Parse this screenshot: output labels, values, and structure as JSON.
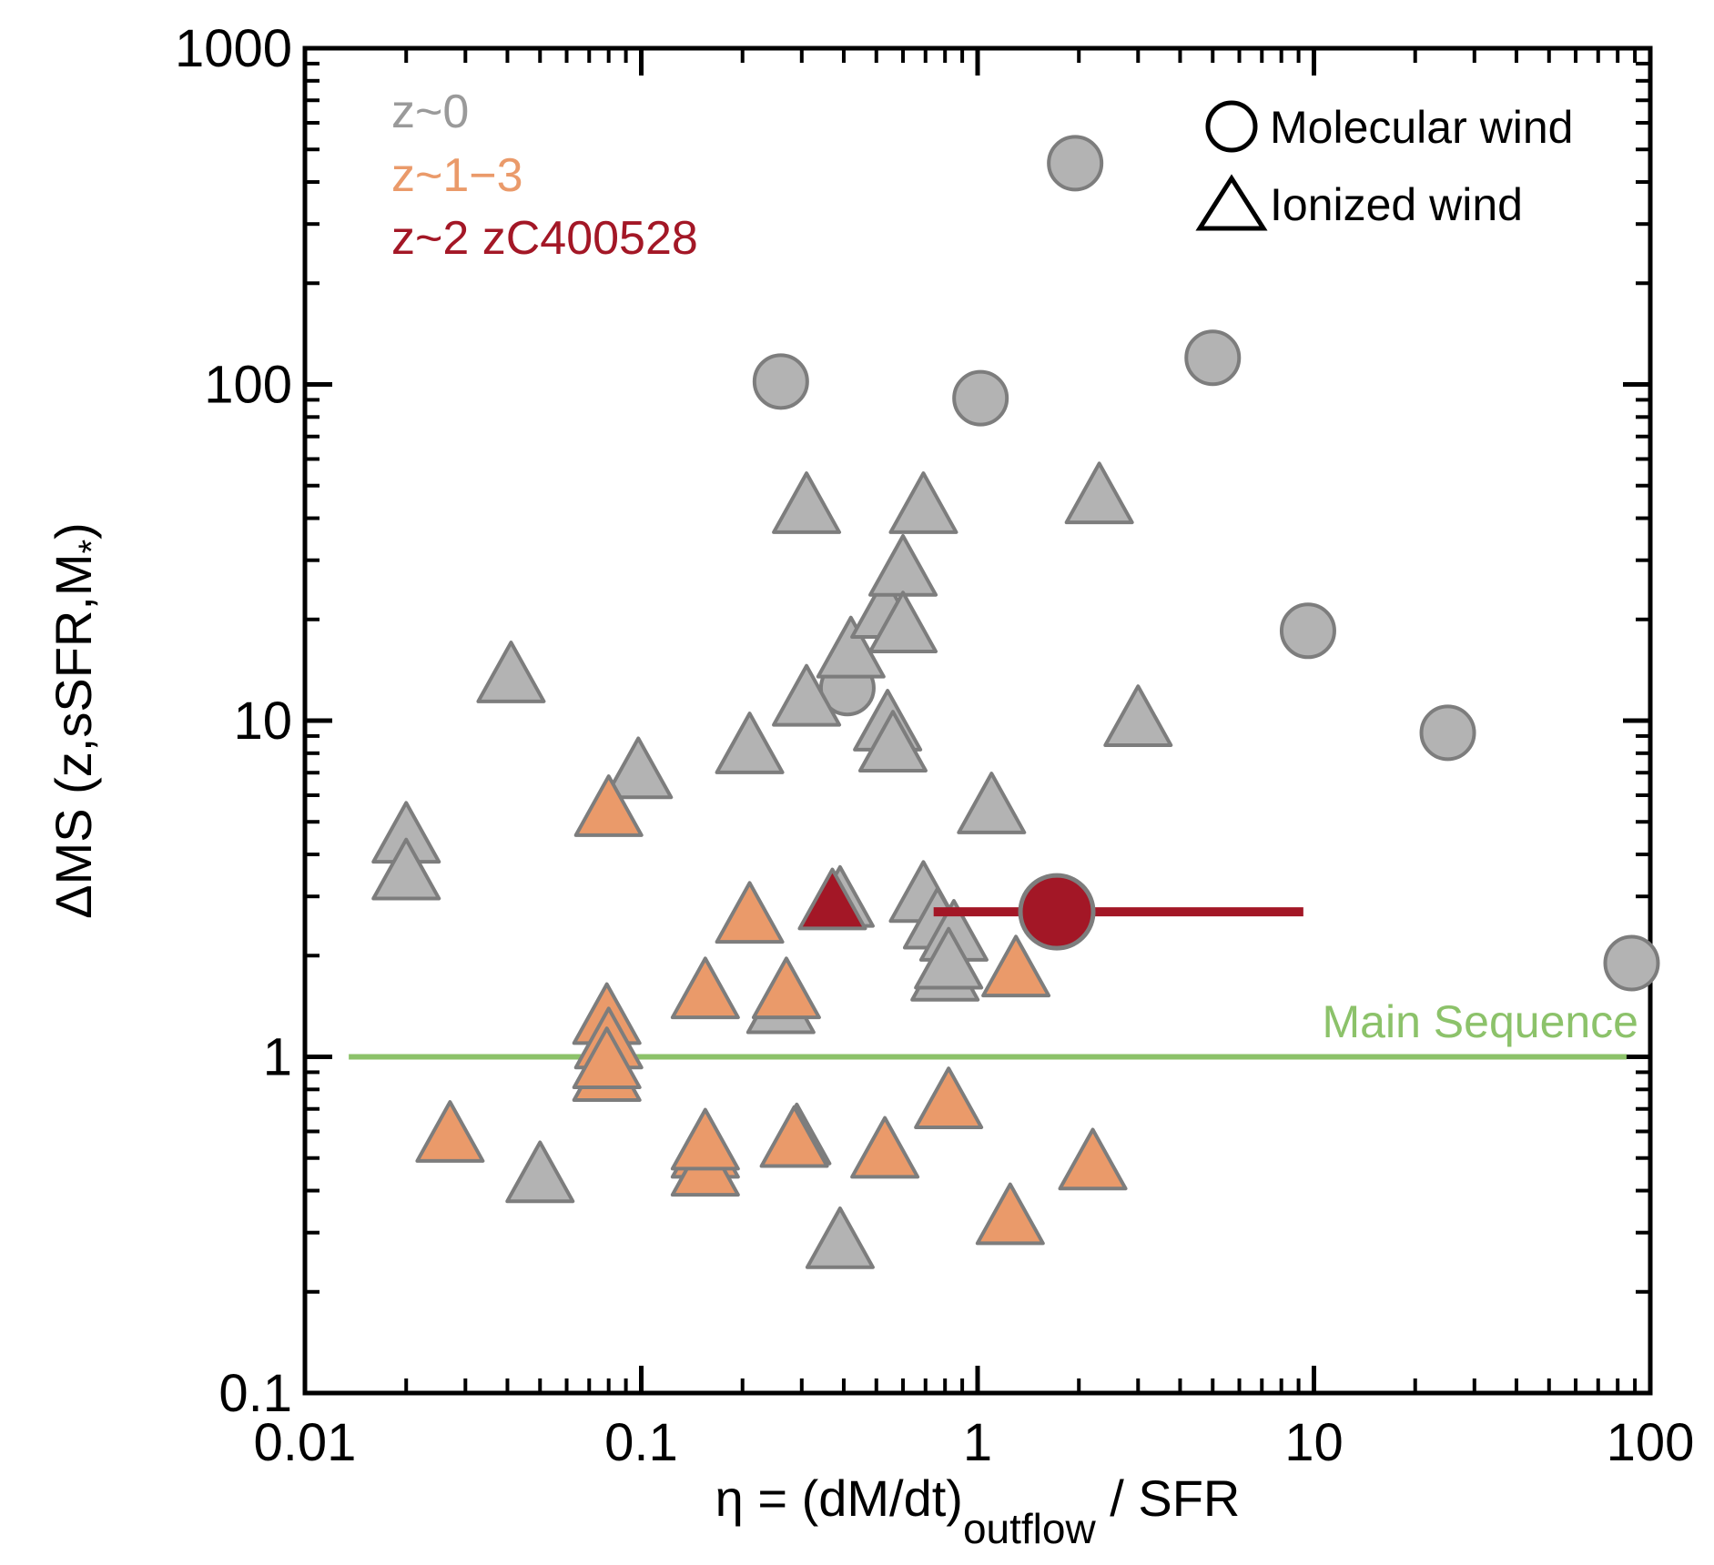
{
  "chart_data": {
    "type": "scatter",
    "x_scale": "log",
    "y_scale": "log",
    "xlim": [
      0.01,
      100
    ],
    "ylim": [
      0.1,
      1000
    ],
    "x_ticks": [
      {
        "value": 0.01,
        "label": "0.01"
      },
      {
        "value": 0.1,
        "label": "0.1"
      },
      {
        "value": 1,
        "label": "1"
      },
      {
        "value": 10,
        "label": "10"
      },
      {
        "value": 100,
        "label": "100"
      }
    ],
    "y_ticks": [
      {
        "value": 0.1,
        "label": "0.1"
      },
      {
        "value": 1,
        "label": "1"
      },
      {
        "value": 10,
        "label": "10"
      },
      {
        "value": 100,
        "label": "100"
      },
      {
        "value": 1000,
        "label": "1000"
      }
    ],
    "xlabel": {
      "main": "η = (dM/dt)",
      "sub": "outflow",
      "tail": " / SFR"
    },
    "ylabel": {
      "main": "ΔMS (z,sSFR,M",
      "sub": "*",
      "tail": ")"
    },
    "colors": {
      "z0": "#b3b3b3",
      "z13": "#ea9a6a",
      "zc": "#a31726",
      "stroke": "#7d7d7d",
      "ms": "#8cc26a"
    },
    "legend": [
      {
        "label": "z~0",
        "color": "#9a9a9a"
      },
      {
        "label": "z~1−3",
        "color": "#ea9a6a"
      },
      {
        "label": "z~2 zC400528",
        "color": "#a31726"
      }
    ],
    "marker_legend": [
      {
        "shape": "circle",
        "label": "Molecular wind"
      },
      {
        "shape": "triangle",
        "label": "Ionized wind"
      }
    ],
    "main_sequence": {
      "label": "Main Sequence",
      "y": 1,
      "x_start": 0.0135,
      "x_end": 85
    },
    "series": [
      {
        "name": "z~0 molecular",
        "marker": "circle",
        "color_key": "z0",
        "points": [
          {
            "x": 0.26,
            "y": 102
          },
          {
            "x": 1.02,
            "y": 91
          },
          {
            "x": 1.95,
            "y": 455
          },
          {
            "x": 5.0,
            "y": 120
          },
          {
            "x": 9.6,
            "y": 18.5
          },
          {
            "x": 25,
            "y": 9.2
          },
          {
            "x": 88,
            "y": 1.9
          },
          {
            "x": 0.41,
            "y": 12.5
          }
        ]
      },
      {
        "name": "z~0 ionized",
        "marker": "triangle",
        "color_key": "z0",
        "points": [
          {
            "x": 0.02,
            "y": 4.5
          },
          {
            "x": 0.02,
            "y": 3.5
          },
          {
            "x": 0.041,
            "y": 13.5
          },
          {
            "x": 0.05,
            "y": 0.44
          },
          {
            "x": 0.098,
            "y": 7.0
          },
          {
            "x": 0.21,
            "y": 8.3
          },
          {
            "x": 0.31,
            "y": 43
          },
          {
            "x": 0.31,
            "y": 11.5
          },
          {
            "x": 0.42,
            "y": 16
          },
          {
            "x": 0.39,
            "y": 2.9
          },
          {
            "x": 0.53,
            "y": 21
          },
          {
            "x": 0.6,
            "y": 28
          },
          {
            "x": 0.6,
            "y": 19
          },
          {
            "x": 0.69,
            "y": 43
          },
          {
            "x": 0.54,
            "y": 9.7
          },
          {
            "x": 0.56,
            "y": 8.4
          },
          {
            "x": 0.69,
            "y": 3.0
          },
          {
            "x": 0.76,
            "y": 2.5
          },
          {
            "x": 0.85,
            "y": 2.3
          },
          {
            "x": 0.8,
            "y": 1.75
          },
          {
            "x": 0.82,
            "y": 1.9
          },
          {
            "x": 1.1,
            "y": 5.5
          },
          {
            "x": 2.3,
            "y": 46
          },
          {
            "x": 3.0,
            "y": 10
          },
          {
            "x": 0.26,
            "y": 1.4
          },
          {
            "x": 0.29,
            "y": 0.57
          },
          {
            "x": 0.39,
            "y": 0.28
          }
        ]
      },
      {
        "name": "z~1-3 ionized",
        "marker": "triangle",
        "color_key": "z13",
        "points": [
          {
            "x": 0.027,
            "y": 0.58
          },
          {
            "x": 0.08,
            "y": 5.4
          },
          {
            "x": 0.079,
            "y": 1.3
          },
          {
            "x": 0.08,
            "y": 1.1
          },
          {
            "x": 0.079,
            "y": 0.88
          },
          {
            "x": 0.079,
            "y": 0.96
          },
          {
            "x": 0.155,
            "y": 1.55
          },
          {
            "x": 0.155,
            "y": 0.52
          },
          {
            "x": 0.155,
            "y": 0.46
          },
          {
            "x": 0.155,
            "y": 0.55
          },
          {
            "x": 0.21,
            "y": 2.6
          },
          {
            "x": 0.27,
            "y": 1.55
          },
          {
            "x": 0.285,
            "y": 0.56
          },
          {
            "x": 0.53,
            "y": 0.52
          },
          {
            "x": 0.82,
            "y": 0.73
          },
          {
            "x": 1.3,
            "y": 1.8
          },
          {
            "x": 1.25,
            "y": 0.33
          },
          {
            "x": 2.2,
            "y": 0.48
          }
        ]
      },
      {
        "name": "z~2 zC400528 ionized",
        "marker": "triangle",
        "color_key": "zc",
        "points": [
          {
            "x": 0.37,
            "y": 2.85
          }
        ]
      },
      {
        "name": "z~2 zC400528 molecular",
        "marker": "circle",
        "color_key": "zc",
        "points": [
          {
            "x": 1.72,
            "y": 2.7,
            "xerr": [
              0.74,
              9.3
            ]
          }
        ]
      }
    ]
  }
}
